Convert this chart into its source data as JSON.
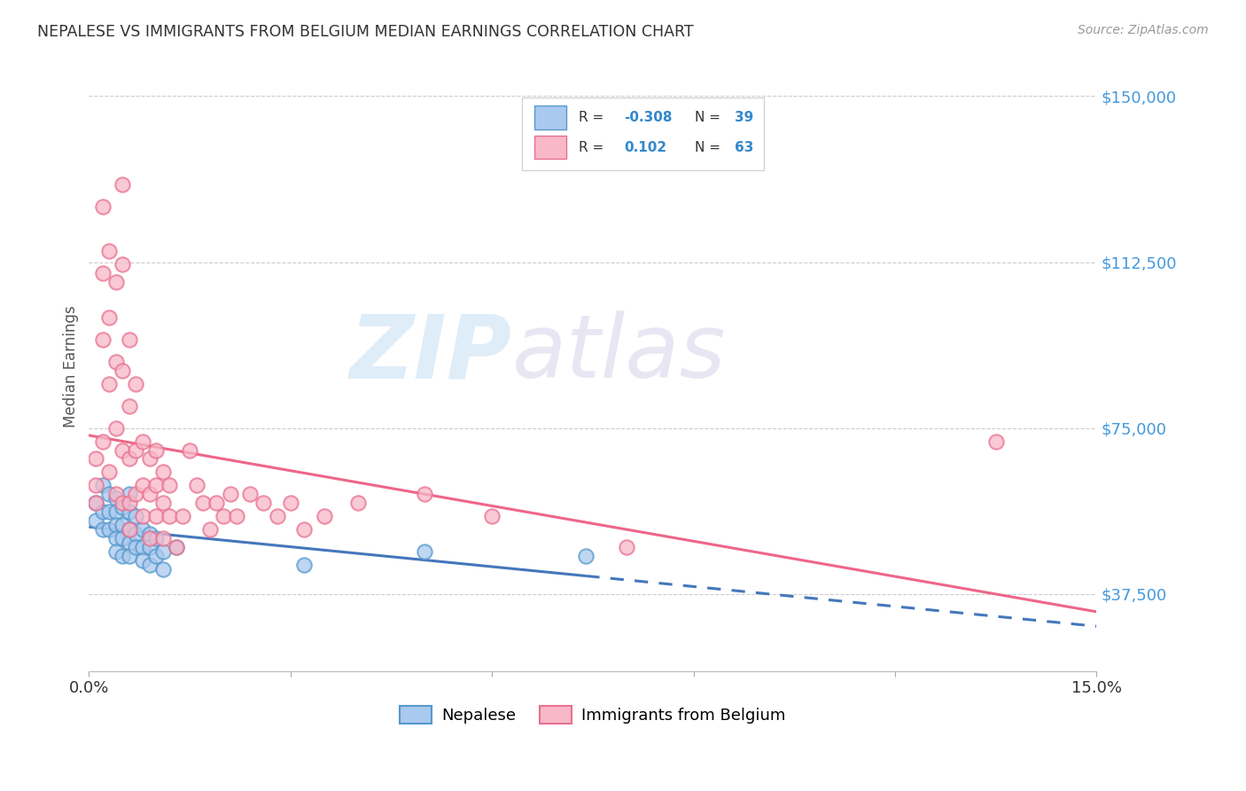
{
  "title": "NEPALESE VS IMMIGRANTS FROM BELGIUM MEDIAN EARNINGS CORRELATION CHART",
  "source": "Source: ZipAtlas.com",
  "ylabel": "Median Earnings",
  "yticks": [
    37500,
    75000,
    112500,
    150000
  ],
  "ytick_labels": [
    "$37,500",
    "$75,000",
    "$112,500",
    "$150,000"
  ],
  "xmin": 0.0,
  "xmax": 0.15,
  "ymin": 20000,
  "ymax": 158000,
  "watermark_zip": "ZIP",
  "watermark_atlas": "atlas",
  "nepalese_color": "#aac9ee",
  "nepalese_edge": "#5599cc",
  "belgium_color": "#f8b8c8",
  "belgium_edge": "#e87090",
  "trend_blue": "#4477bb",
  "trend_pink": "#ee6688",
  "nepalese_label": "Nepalese",
  "belgium_label": "Immigrants from Belgium",
  "legend_r1_pre": "R = ",
  "legend_r1_val": "-0.308",
  "legend_n1_pre": "N = ",
  "legend_n1_val": "39",
  "legend_r2_pre": "R =  ",
  "legend_r2_val": "0.102",
  "legend_n2_pre": "N = ",
  "legend_n2_val": "63",
  "nepalese_x": [
    0.001,
    0.001,
    0.002,
    0.002,
    0.002,
    0.003,
    0.003,
    0.003,
    0.004,
    0.004,
    0.004,
    0.004,
    0.004,
    0.005,
    0.005,
    0.005,
    0.005,
    0.006,
    0.006,
    0.006,
    0.006,
    0.006,
    0.007,
    0.007,
    0.007,
    0.008,
    0.008,
    0.008,
    0.009,
    0.009,
    0.009,
    0.01,
    0.01,
    0.011,
    0.011,
    0.013,
    0.032,
    0.05,
    0.074
  ],
  "nepalese_y": [
    58000,
    54000,
    62000,
    56000,
    52000,
    60000,
    56000,
    52000,
    59000,
    56000,
    53000,
    50000,
    47000,
    57000,
    53000,
    50000,
    46000,
    60000,
    56000,
    52000,
    49000,
    46000,
    55000,
    51000,
    48000,
    52000,
    48000,
    45000,
    51000,
    48000,
    44000,
    50000,
    46000,
    47000,
    43000,
    48000,
    44000,
    47000,
    46000
  ],
  "belgium_x": [
    0.001,
    0.001,
    0.001,
    0.002,
    0.002,
    0.002,
    0.002,
    0.003,
    0.003,
    0.003,
    0.003,
    0.004,
    0.004,
    0.004,
    0.004,
    0.005,
    0.005,
    0.005,
    0.005,
    0.005,
    0.006,
    0.006,
    0.006,
    0.006,
    0.006,
    0.007,
    0.007,
    0.007,
    0.008,
    0.008,
    0.008,
    0.009,
    0.009,
    0.009,
    0.01,
    0.01,
    0.01,
    0.011,
    0.011,
    0.011,
    0.012,
    0.012,
    0.013,
    0.014,
    0.015,
    0.016,
    0.017,
    0.018,
    0.019,
    0.02,
    0.021,
    0.022,
    0.024,
    0.026,
    0.028,
    0.03,
    0.032,
    0.035,
    0.04,
    0.05,
    0.06,
    0.08,
    0.135
  ],
  "belgium_y": [
    68000,
    62000,
    58000,
    125000,
    110000,
    95000,
    72000,
    115000,
    100000,
    85000,
    65000,
    108000,
    90000,
    75000,
    60000,
    130000,
    112000,
    88000,
    70000,
    58000,
    95000,
    80000,
    68000,
    58000,
    52000,
    85000,
    70000,
    60000,
    72000,
    62000,
    55000,
    68000,
    60000,
    50000,
    70000,
    62000,
    55000,
    65000,
    58000,
    50000,
    62000,
    55000,
    48000,
    55000,
    70000,
    62000,
    58000,
    52000,
    58000,
    55000,
    60000,
    55000,
    60000,
    58000,
    55000,
    58000,
    52000,
    55000,
    58000,
    60000,
    55000,
    48000,
    72000
  ]
}
